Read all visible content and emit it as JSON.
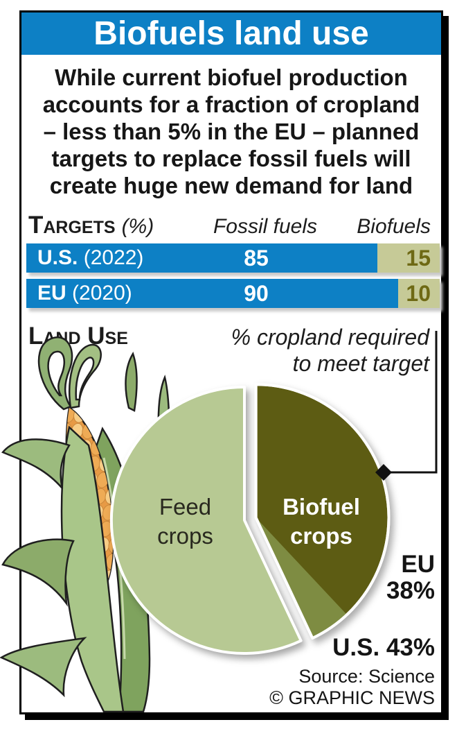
{
  "colors": {
    "brand_blue": "#0d80c5",
    "bar_biofuel_khaki": "#c6ca97",
    "bar_value_olive": "#6e6914",
    "pie_dark_olive": "#5d5c13",
    "pie_mid_olive": "#7e8c42",
    "pie_light_green": "#b7c993",
    "frame_black": "#000000"
  },
  "header": {
    "title": "Biofuels land use"
  },
  "intro": {
    "lines": [
      "While current biofuel production",
      "accounts for a fraction of cropland",
      "– less than 5% in the EU – planned",
      "targets to replace fossil fuels will",
      "create huge new demand for land"
    ]
  },
  "targets": {
    "heading": "Targets",
    "unit": "(%)",
    "columns": [
      "Fossil fuels",
      "Biofuels"
    ],
    "rows": [
      {
        "name": "U.S.",
        "year": "(2022)"
      },
      {
        "name": "EU",
        "year": "(2020)"
      }
    ]
  },
  "land_use": {
    "heading": "Land Use",
    "annotation_lines": [
      "% cropland required",
      "to meet target"
    ],
    "feed_label_lines": [
      "Feed",
      "crops"
    ],
    "biofuel_label_lines": [
      "Biofuel",
      "crops"
    ],
    "callout_eu_lines": [
      "EU",
      "38%"
    ],
    "callout_us": "U.S. 43%"
  },
  "footer": {
    "source": "Source: Science",
    "credit": "© GRAPHIC NEWS"
  },
  "chart_data": [
    {
      "type": "bar",
      "title": "Targets (%) — fossil fuels vs biofuels",
      "orientation": "horizontal-stacked",
      "categories": [
        "U.S. (2022)",
        "EU (2020)"
      ],
      "series": [
        {
          "name": "Fossil fuels",
          "values": [
            85,
            90
          ],
          "color": "#0d80c5",
          "text_color": "#ffffff"
        },
        {
          "name": "Biofuels",
          "values": [
            15,
            10
          ],
          "color": "#c6ca97",
          "text_color": "#6e6914"
        }
      ],
      "xlim": [
        0,
        100
      ],
      "value_labels": true
    },
    {
      "type": "pie",
      "title": "Land Use — % cropland required to meet target",
      "slices": [
        {
          "label": "Biofuel crops — EU target",
          "value": 38,
          "color": "#5d5c13",
          "exploded": true
        },
        {
          "label": "Biofuel crops — additional for U.S. target",
          "value": 5,
          "color": "#7e8c42",
          "exploded": true
        },
        {
          "label": "Feed crops",
          "value": 57,
          "color": "#b7c993",
          "exploded": false
        }
      ],
      "callouts": [
        {
          "label": "EU",
          "value": "38%"
        },
        {
          "label": "U.S.",
          "value": "43%"
        }
      ],
      "legend_position": "on-slice"
    }
  ]
}
